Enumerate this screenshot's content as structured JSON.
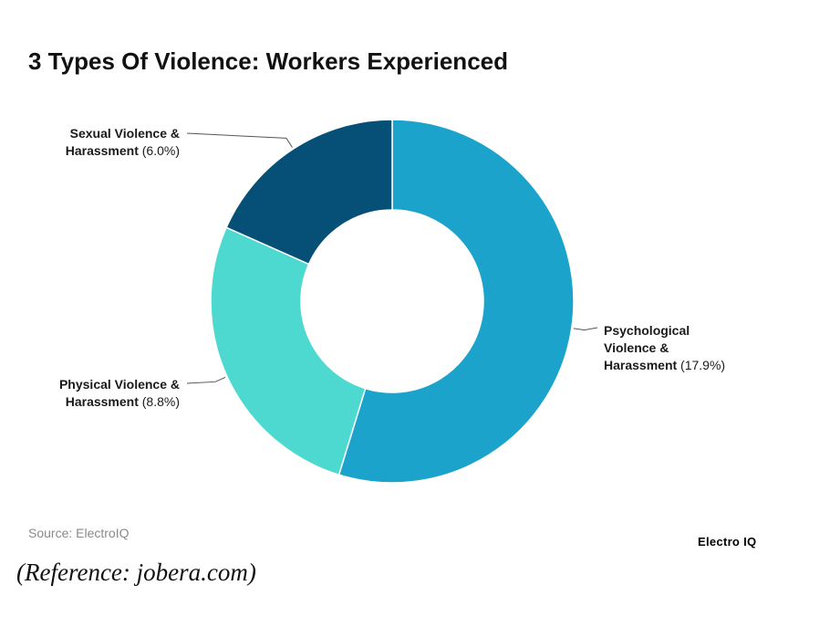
{
  "title": "3 Types Of Violence: Workers Experienced",
  "source": "Source: ElectroIQ",
  "brand": "Electro IQ",
  "reference": "(Reference: jobera.com)",
  "chart_data": {
    "type": "donut",
    "unit": "%",
    "slices": [
      {
        "name_lines": [
          "Psychological",
          "Violence &",
          "Harassment"
        ],
        "value": 17.9,
        "value_label": "(17.9%)",
        "color": "#1ba3cc"
      },
      {
        "name_lines": [
          "Physical Violence &",
          "Harassment"
        ],
        "value": 8.8,
        "value_label": "(8.8%)",
        "color": "#4ed9d0"
      },
      {
        "name_lines": [
          "Sexual Violence &",
          "Harassment"
        ],
        "value": 6.0,
        "value_label": "(6.0%)",
        "color": "#064f76"
      }
    ]
  }
}
